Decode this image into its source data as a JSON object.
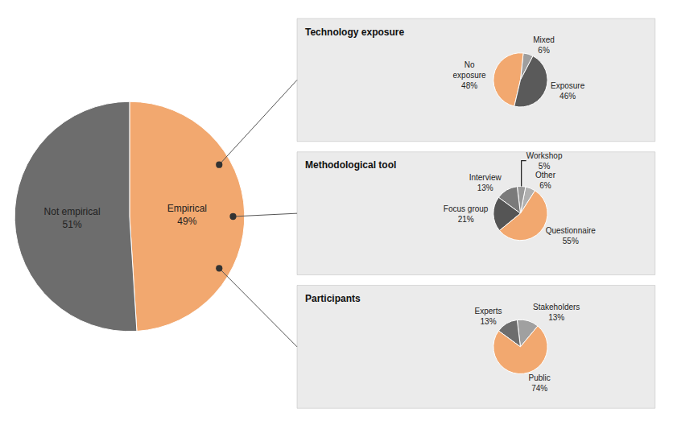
{
  "chart_data": [
    {
      "type": "pie",
      "categories": [
        "Empirical",
        "Not empirical"
      ],
      "values": [
        49,
        51
      ],
      "value_labels": [
        "49%",
        "51%"
      ],
      "colors": [
        "#F2A86F",
        "#6D6D6D"
      ]
    },
    {
      "type": "pie",
      "title": "Technology exposure",
      "categories": [
        "Mixed",
        "No\nexposure",
        "Exposure"
      ],
      "values": [
        6,
        48,
        46
      ],
      "value_labels": [
        "6%",
        "48%",
        "46%"
      ],
      "colors": [
        "#9E9E9E",
        "#F2A86F",
        "#5A5A5A"
      ]
    },
    {
      "type": "pie",
      "title": "Methodological tool",
      "categories": [
        "Other",
        "Workshop",
        "Interview",
        "Focus group",
        "Questionnaire"
      ],
      "values": [
        6,
        5,
        13,
        21,
        55
      ],
      "value_labels": [
        "6%",
        "5%",
        "13%",
        "21%",
        "55%"
      ],
      "colors": [
        "#B0B0B0",
        "#9A9A9A",
        "#7A7A7A",
        "#555555",
        "#F2A86F"
      ]
    },
    {
      "type": "pie",
      "title": "Participants",
      "categories": [
        "Stakeholders",
        "Experts",
        "Public"
      ],
      "values": [
        13,
        13,
        74
      ],
      "value_labels": [
        "13%",
        "13%",
        "74%"
      ],
      "colors": [
        "#A0A0A0",
        "#6D6D6D",
        "#F2A86F"
      ]
    }
  ]
}
